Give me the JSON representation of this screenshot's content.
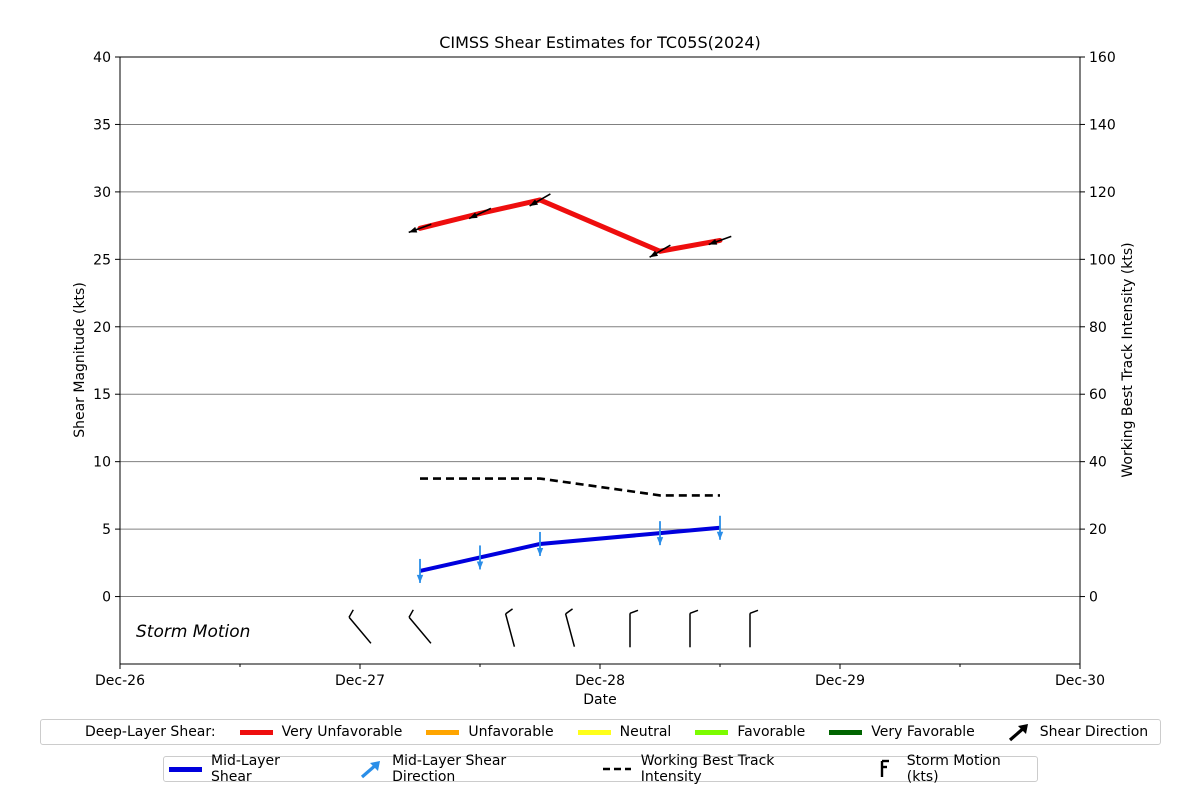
{
  "chart_data": {
    "type": "line",
    "title": "CIMSS Shear Estimates for TC05S(2024)",
    "xlabel": "Date",
    "ylabel_left": "Shear Magnitude (kts)",
    "ylabel_right": "Working Best Track Intensity (kts)",
    "x_ticks": [
      {
        "value": 0,
        "label": "Dec-26"
      },
      {
        "value": 1,
        "label": "Dec-27"
      },
      {
        "value": 2,
        "label": "Dec-28"
      },
      {
        "value": 3,
        "label": "Dec-29"
      },
      {
        "value": 4,
        "label": "Dec-30"
      }
    ],
    "xlim": [
      0,
      4
    ],
    "ylim_left": [
      -5,
      40
    ],
    "ylim_right": [
      -20,
      160
    ],
    "y_ticks_left": [
      0,
      5,
      10,
      15,
      20,
      25,
      30,
      35,
      40
    ],
    "y_ticks_right": [
      0,
      20,
      40,
      60,
      80,
      100,
      120,
      140,
      160
    ],
    "grid": "horizontal",
    "annotation": "Storm Motion",
    "deep_layer_shear": {
      "name": "Deep-Layer Shear",
      "x": [
        1.25,
        1.5,
        1.75,
        2.25,
        2.5
      ],
      "y": [
        27.3,
        28.4,
        29.4,
        25.6,
        26.4
      ],
      "category": [
        "Very Unfavorable",
        "Very Unfavorable",
        "Very Unfavorable",
        "Very Unfavorable",
        "Very Unfavorable"
      ],
      "direction_deg": [
        250,
        245,
        240,
        240,
        250
      ]
    },
    "mid_layer_shear": {
      "name": "Mid-Layer Shear",
      "x": [
        1.25,
        1.5,
        1.75,
        2.25,
        2.5
      ],
      "y": [
        1.9,
        2.9,
        3.9,
        4.7,
        5.1
      ],
      "direction_deg": [
        180,
        180,
        180,
        180,
        180
      ]
    },
    "intensity": {
      "name": "Working Best Track Intensity",
      "x": [
        1.25,
        1.5,
        1.75,
        2.25,
        2.5
      ],
      "y": [
        35,
        35,
        35,
        30,
        30
      ]
    },
    "storm_motion": {
      "x": [
        1.0,
        1.25,
        1.625,
        1.875,
        2.125,
        2.375,
        2.625
      ],
      "direction_deg": [
        140,
        140,
        165,
        165,
        180,
        180,
        180
      ],
      "speed_kts": [
        5,
        5,
        5,
        5,
        5,
        5,
        5
      ]
    }
  },
  "legend1": {
    "title": "Deep-Layer Shear:",
    "items": [
      {
        "label": "Very Unfavorable",
        "color": "#ee0e0e"
      },
      {
        "label": "Unfavorable",
        "color": "#ffa500"
      },
      {
        "label": "Neutral",
        "color": "#ffff1a"
      },
      {
        "label": "Favorable",
        "color": "#7cfc00"
      },
      {
        "label": "Very Favorable",
        "color": "#006400"
      }
    ],
    "direction_label": "Shear Direction"
  },
  "legend2": {
    "mid_label": "Mid-Layer Shear",
    "mid_color": "#0000dd",
    "mid_dir_label": "Mid-Layer Shear Direction",
    "mid_dir_color": "#2a8ee8",
    "intensity_label": "Working Best Track Intensity",
    "storm_label": "Storm Motion (kts)"
  }
}
